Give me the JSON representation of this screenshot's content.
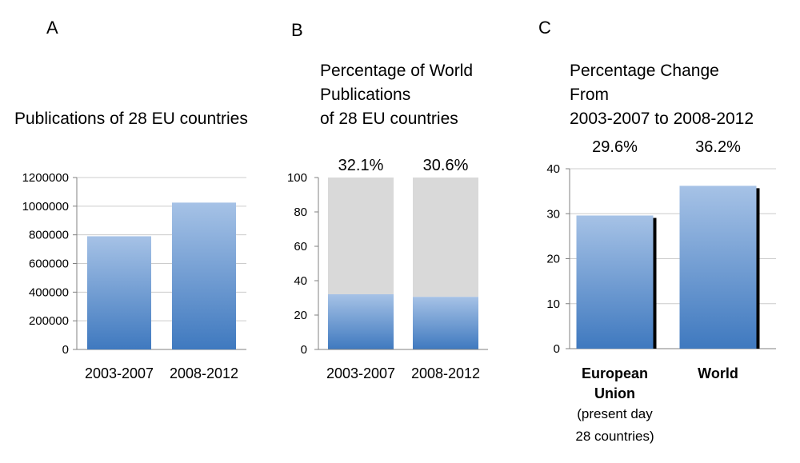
{
  "colors": {
    "bar_top": "#a6c2e6",
    "bar_bottom": "#3f79bf",
    "remainder": "#d9d9d9",
    "axis": "#808080",
    "grid": "#cccccc",
    "shadow": "#000000"
  },
  "chart_data": [
    {
      "panel": "A",
      "type": "bar",
      "title": "Publications of 28 EU countries",
      "categories": [
        "2003-2007",
        "2008-2012"
      ],
      "values": [
        790000,
        1025000
      ],
      "ylim": [
        0,
        1200000
      ],
      "yticks": [
        "0",
        "200000",
        "400000",
        "600000",
        "800000",
        "1000000",
        "1200000"
      ],
      "grid": true,
      "xlabel": "",
      "ylabel": ""
    },
    {
      "panel": "B",
      "type": "bar",
      "stacked": true,
      "title_lines": [
        "Percentage of World",
        "Publications",
        "of 28 EU countries"
      ],
      "categories": [
        "2003-2007",
        "2008-2012"
      ],
      "values": [
        32.1,
        30.6
      ],
      "total": 100,
      "value_labels": [
        "32.1%",
        "30.6%"
      ],
      "ylim": [
        0,
        100
      ],
      "yticks": [
        "0",
        "20",
        "40",
        "60",
        "80",
        "100"
      ],
      "grid": false
    },
    {
      "panel": "C",
      "type": "bar",
      "title_lines": [
        "Percentage Change",
        "From",
        "2003-2007 to 2008-2012"
      ],
      "categories": [
        {
          "main_lines": [
            "European",
            "Union"
          ],
          "sub_lines": [
            "(present day",
            "28 countries)"
          ]
        },
        {
          "main_lines": [
            "World"
          ],
          "sub_lines": []
        }
      ],
      "values": [
        29.6,
        36.2
      ],
      "value_labels": [
        "29.6%",
        "36.2%"
      ],
      "ylim": [
        0,
        40
      ],
      "yticks": [
        "0",
        "10",
        "20",
        "30",
        "40"
      ],
      "grid": true
    }
  ]
}
